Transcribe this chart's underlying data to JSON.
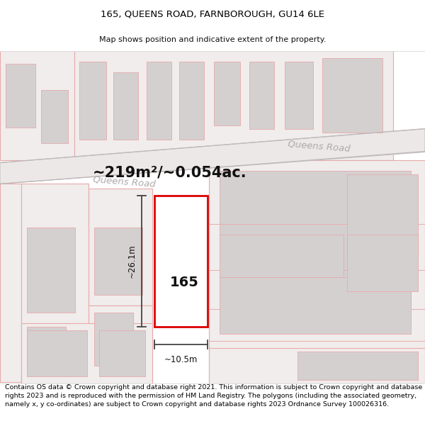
{
  "title_line1": "165, QUEENS ROAD, FARNBOROUGH, GU14 6LE",
  "title_line2": "Map shows position and indicative extent of the property.",
  "footer_text": "Contains OS data © Crown copyright and database right 2021. This information is subject to Crown copyright and database rights 2023 and is reproduced with the permission of HM Land Registry. The polygons (including the associated geometry, namely x, y co-ordinates) are subject to Crown copyright and database rights 2023 Ordnance Survey 100026316.",
  "area_label": "~219m²/~0.054ac.",
  "road_label_left": "Queens Road",
  "road_label_right": "Queens Road",
  "property_number": "165",
  "dim_height": "~26.1m",
  "dim_width": "~10.5m",
  "map_bg": "#f7f5f5",
  "plot_fill": "#ffffff",
  "plot_border": "#dd0000",
  "building_fill": "#d4d0d0",
  "parcel_fill": "#f0edec",
  "road_line_color": "#e8aaaa",
  "parcel_line_color": "#e8aaaa",
  "road_band_color": "#e8e4e4",
  "dim_line_color": "#444444",
  "road_label_color": "#b0aaaa",
  "title_fontsize": 9.5,
  "subtitle_fontsize": 8.0,
  "footer_fontsize": 6.8,
  "area_label_fontsize": 15,
  "prop_number_fontsize": 14
}
